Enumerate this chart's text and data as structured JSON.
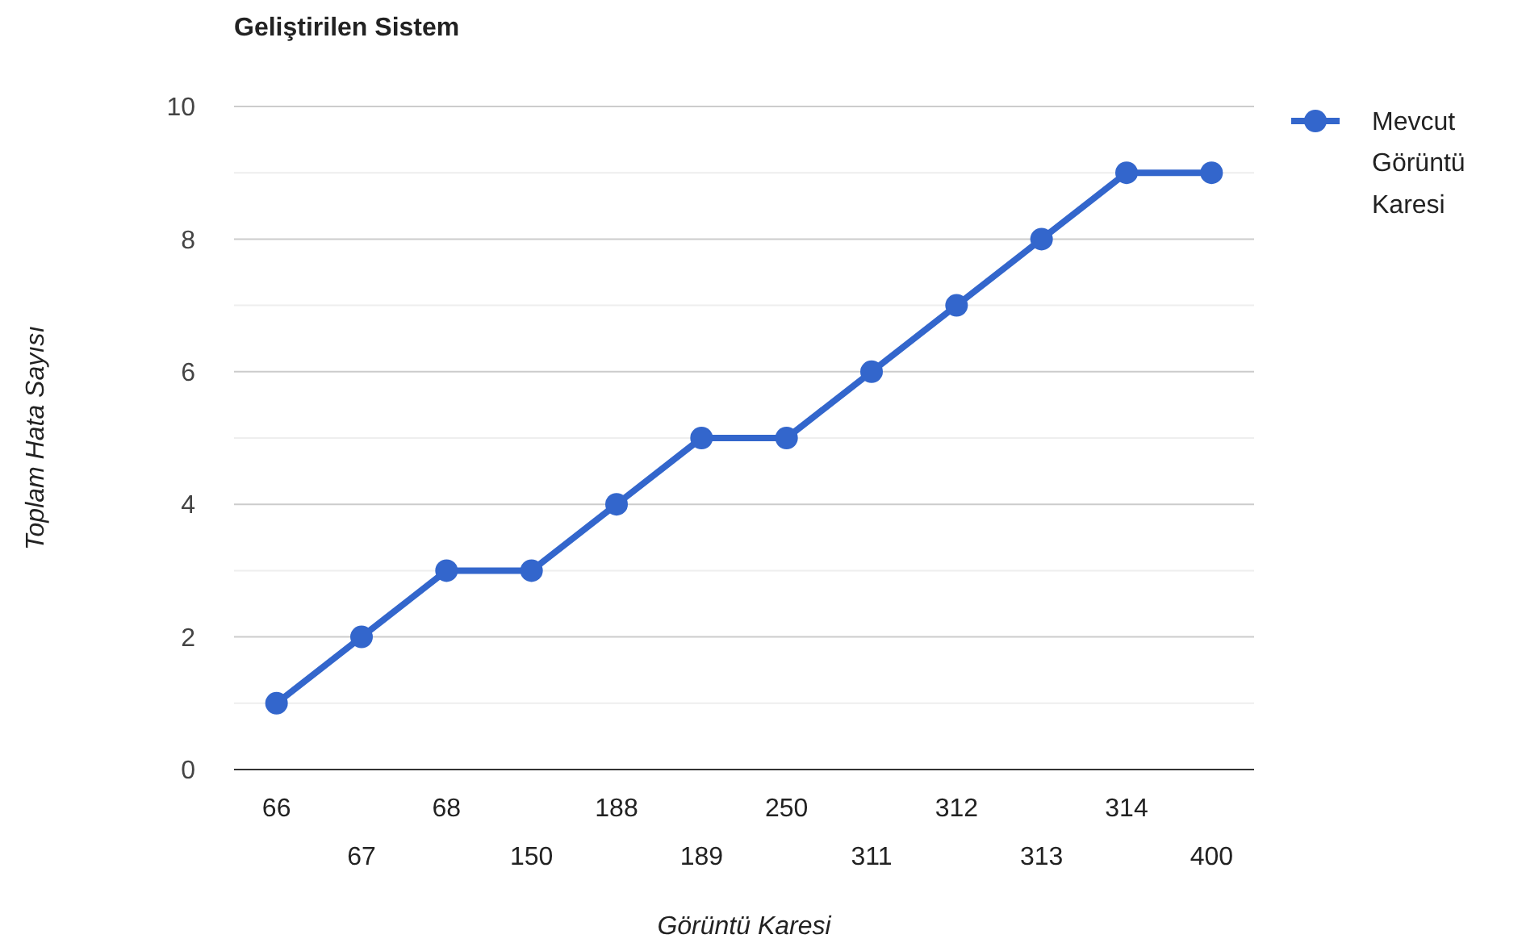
{
  "chart_data": {
    "type": "line",
    "title": "Geliştirilen Sistem",
    "xlabel": "Görüntü Karesi",
    "ylabel": "Toplam Hata Sayısı",
    "categories": [
      "66",
      "67",
      "68",
      "150",
      "188",
      "189",
      "250",
      "311",
      "312",
      "313",
      "314",
      "400"
    ],
    "series": [
      {
        "name": "Mevcut Görüntü Karesi",
        "color": "#3366cc",
        "values": [
          1,
          2,
          3,
          3,
          4,
          5,
          5,
          6,
          7,
          8,
          9,
          9
        ]
      }
    ],
    "ylim": [
      0,
      10
    ],
    "yticks": [
      0,
      {
        "value": 1,
        "label": null
      },
      2,
      {
        "value": 3,
        "label": null
      },
      4,
      {
        "value": 5,
        "label": null
      },
      6,
      {
        "value": 7,
        "label": null
      },
      8,
      {
        "value": 9,
        "label": null
      },
      10
    ],
    "grid": true,
    "legend": "right",
    "marker": "circle",
    "line_style": "solid"
  }
}
